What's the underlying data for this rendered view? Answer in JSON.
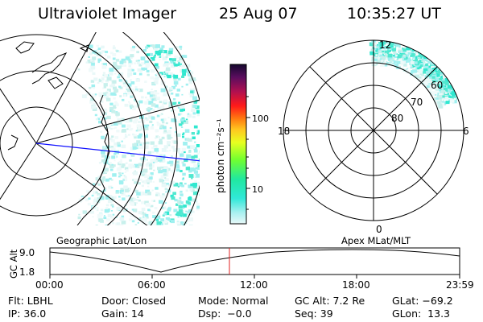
{
  "header": {
    "instrument": "Ultraviolet Imager",
    "date": "25 Aug 07",
    "time": "10:35:27 UT"
  },
  "colorbar": {
    "unit_label": "photon cm⁻²s⁻¹",
    "ticks": [
      "100",
      "10"
    ],
    "scale": "log",
    "colors": [
      "#1a0a3a",
      "#6a0d5a",
      "#c0104a",
      "#ff2020",
      "#ff8a10",
      "#ffd020",
      "#e8ff20",
      "#70ff30",
      "#20e890",
      "#30e8d0",
      "#a0f0f0",
      "#e8f8f8"
    ]
  },
  "polar_plot": {
    "mlt_labels": {
      "top": "12",
      "left": "18",
      "right": "6",
      "bottom": "0"
    },
    "mlat_labels": [
      "60",
      "70",
      "80"
    ]
  },
  "panel_labels": {
    "left": "Geographic Lat/Lon",
    "right": "Apex MLat/MLT"
  },
  "altitude_plot": {
    "ylabel": "GC Alt",
    "yticks": [
      "9.0",
      "1.8"
    ],
    "xticks": [
      "00:00",
      "06:00",
      "12:00",
      "18:00",
      "23:59"
    ],
    "marker_color": "#e02020"
  },
  "status": {
    "row1": [
      {
        "name": "Flt",
        "text": "Flt: LBHL"
      },
      {
        "name": "Door",
        "text": "Door: Closed"
      },
      {
        "name": "Mode",
        "text": "Mode: Normal"
      },
      {
        "name": "GC Alt",
        "text": "GC Alt: 7.2 Re"
      },
      {
        "name": "GLat",
        "text": "GLat: −69.2"
      }
    ],
    "row2": [
      {
        "name": "IP",
        "text": "IP: 36.0"
      },
      {
        "name": "Gain",
        "text": "Gain: 14"
      },
      {
        "name": "Dsp",
        "text": "Dsp:  −0.0"
      },
      {
        "name": "Seq",
        "text": "Seq: 39"
      },
      {
        "name": "GLon",
        "text": "GLon:  13.3"
      }
    ]
  }
}
